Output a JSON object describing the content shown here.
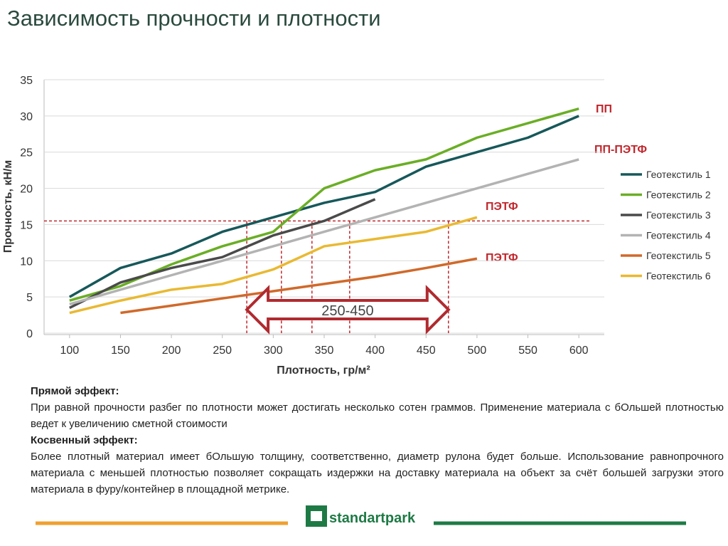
{
  "header": {
    "title": "Зависимость прочности и плотности"
  },
  "chart_data": {
    "type": "line",
    "x_label": "Плотность, гр/м²",
    "y_label": "Прочность, кН/м",
    "x": [
      100,
      150,
      200,
      250,
      300,
      350,
      400,
      450,
      500,
      550,
      600
    ],
    "xlim": [
      75,
      625
    ],
    "xticks": [
      100,
      150,
      200,
      250,
      300,
      350,
      400,
      450,
      500,
      550,
      600
    ],
    "ylim": [
      0,
      35
    ],
    "yticks": [
      0,
      5,
      10,
      15,
      20,
      25,
      30,
      35
    ],
    "grid": true,
    "legend": "right",
    "series": [
      {
        "name": "Геотекстиль 1",
        "color": "#17585a",
        "values": [
          5,
          9,
          11,
          14,
          16,
          18,
          19.5,
          23,
          25,
          27,
          30
        ]
      },
      {
        "name": "Геотекстиль 2",
        "color": "#6aae25",
        "values": [
          4.5,
          6.5,
          9.5,
          12,
          14,
          20,
          22.5,
          24,
          27,
          29,
          31
        ]
      },
      {
        "name": "Геотекстиль 3",
        "color": "#4a4a4a",
        "values": [
          3.5,
          7,
          9,
          10.5,
          13.5,
          15.5,
          18.5,
          null,
          null,
          null,
          null
        ]
      },
      {
        "name": "Геотекстиль 4",
        "color": "#b3b3b3",
        "values": [
          4,
          6,
          8,
          10,
          12,
          14,
          16,
          18,
          20,
          22,
          24
        ]
      },
      {
        "name": "Геотекстиль 5",
        "color": "#d0692a",
        "values": [
          null,
          2.8,
          3.8,
          4.8,
          5.8,
          6.8,
          7.8,
          9,
          10.3,
          null,
          null
        ]
      },
      {
        "name": "Геотекстиль 6",
        "color": "#e9b932",
        "values": [
          2.8,
          4.5,
          6,
          6.8,
          8.8,
          12,
          13,
          14,
          16,
          null,
          null
        ]
      }
    ],
    "reference_lines": {
      "color": "#c0272d",
      "y": 15.5,
      "x": [
        274,
        308,
        338,
        375,
        472
      ]
    },
    "range_label": "250-450",
    "annotations": [
      "ПП",
      "ПП-ПЭТФ",
      "ПЭТФ",
      "ПЭТФ"
    ]
  },
  "notes": {
    "direct_heading": "Прямой эффект:",
    "direct_text": "При равной прочности разбег по плотности может достигать несколько сотен граммов. Применение материала с бОльшей плотностью ведет к увеличению сметной стоимости",
    "indirect_heading": "Косвенный эффект:",
    "indirect_text": "Более плотный материал имеет бОльшую толщину, соответственно, диаметр рулона будет больше. Использование равнопрочного материала с меньшей плотностью позволяет сокращать издержки на доставку материала на объект за счёт большей загрузки этого материала в фуру/контейнер в площадной метрике."
  },
  "footer": {
    "logo": "standartpark"
  }
}
